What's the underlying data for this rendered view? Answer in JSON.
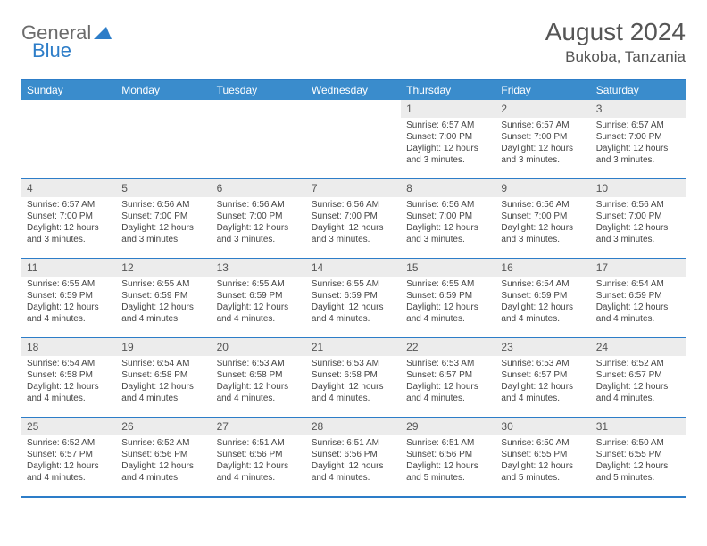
{
  "logo": {
    "text_general": "General",
    "text_blue": "Blue"
  },
  "title": {
    "month": "August 2024",
    "location": "Bukoba, Tanzania"
  },
  "colors": {
    "header_bg": "#3a8ccc",
    "border": "#2d7dc8",
    "daynum_bg": "#ececec",
    "text": "#444444"
  },
  "day_names": [
    "Sunday",
    "Monday",
    "Tuesday",
    "Wednesday",
    "Thursday",
    "Friday",
    "Saturday"
  ],
  "weeks": [
    [
      {
        "day": "",
        "sunrise": "",
        "sunset": "",
        "daylight": ""
      },
      {
        "day": "",
        "sunrise": "",
        "sunset": "",
        "daylight": ""
      },
      {
        "day": "",
        "sunrise": "",
        "sunset": "",
        "daylight": ""
      },
      {
        "day": "",
        "sunrise": "",
        "sunset": "",
        "daylight": ""
      },
      {
        "day": "1",
        "sunrise": "Sunrise: 6:57 AM",
        "sunset": "Sunset: 7:00 PM",
        "daylight": "Daylight: 12 hours and 3 minutes."
      },
      {
        "day": "2",
        "sunrise": "Sunrise: 6:57 AM",
        "sunset": "Sunset: 7:00 PM",
        "daylight": "Daylight: 12 hours and 3 minutes."
      },
      {
        "day": "3",
        "sunrise": "Sunrise: 6:57 AM",
        "sunset": "Sunset: 7:00 PM",
        "daylight": "Daylight: 12 hours and 3 minutes."
      }
    ],
    [
      {
        "day": "4",
        "sunrise": "Sunrise: 6:57 AM",
        "sunset": "Sunset: 7:00 PM",
        "daylight": "Daylight: 12 hours and 3 minutes."
      },
      {
        "day": "5",
        "sunrise": "Sunrise: 6:56 AM",
        "sunset": "Sunset: 7:00 PM",
        "daylight": "Daylight: 12 hours and 3 minutes."
      },
      {
        "day": "6",
        "sunrise": "Sunrise: 6:56 AM",
        "sunset": "Sunset: 7:00 PM",
        "daylight": "Daylight: 12 hours and 3 minutes."
      },
      {
        "day": "7",
        "sunrise": "Sunrise: 6:56 AM",
        "sunset": "Sunset: 7:00 PM",
        "daylight": "Daylight: 12 hours and 3 minutes."
      },
      {
        "day": "8",
        "sunrise": "Sunrise: 6:56 AM",
        "sunset": "Sunset: 7:00 PM",
        "daylight": "Daylight: 12 hours and 3 minutes."
      },
      {
        "day": "9",
        "sunrise": "Sunrise: 6:56 AM",
        "sunset": "Sunset: 7:00 PM",
        "daylight": "Daylight: 12 hours and 3 minutes."
      },
      {
        "day": "10",
        "sunrise": "Sunrise: 6:56 AM",
        "sunset": "Sunset: 7:00 PM",
        "daylight": "Daylight: 12 hours and 3 minutes."
      }
    ],
    [
      {
        "day": "11",
        "sunrise": "Sunrise: 6:55 AM",
        "sunset": "Sunset: 6:59 PM",
        "daylight": "Daylight: 12 hours and 4 minutes."
      },
      {
        "day": "12",
        "sunrise": "Sunrise: 6:55 AM",
        "sunset": "Sunset: 6:59 PM",
        "daylight": "Daylight: 12 hours and 4 minutes."
      },
      {
        "day": "13",
        "sunrise": "Sunrise: 6:55 AM",
        "sunset": "Sunset: 6:59 PM",
        "daylight": "Daylight: 12 hours and 4 minutes."
      },
      {
        "day": "14",
        "sunrise": "Sunrise: 6:55 AM",
        "sunset": "Sunset: 6:59 PM",
        "daylight": "Daylight: 12 hours and 4 minutes."
      },
      {
        "day": "15",
        "sunrise": "Sunrise: 6:55 AM",
        "sunset": "Sunset: 6:59 PM",
        "daylight": "Daylight: 12 hours and 4 minutes."
      },
      {
        "day": "16",
        "sunrise": "Sunrise: 6:54 AM",
        "sunset": "Sunset: 6:59 PM",
        "daylight": "Daylight: 12 hours and 4 minutes."
      },
      {
        "day": "17",
        "sunrise": "Sunrise: 6:54 AM",
        "sunset": "Sunset: 6:59 PM",
        "daylight": "Daylight: 12 hours and 4 minutes."
      }
    ],
    [
      {
        "day": "18",
        "sunrise": "Sunrise: 6:54 AM",
        "sunset": "Sunset: 6:58 PM",
        "daylight": "Daylight: 12 hours and 4 minutes."
      },
      {
        "day": "19",
        "sunrise": "Sunrise: 6:54 AM",
        "sunset": "Sunset: 6:58 PM",
        "daylight": "Daylight: 12 hours and 4 minutes."
      },
      {
        "day": "20",
        "sunrise": "Sunrise: 6:53 AM",
        "sunset": "Sunset: 6:58 PM",
        "daylight": "Daylight: 12 hours and 4 minutes."
      },
      {
        "day": "21",
        "sunrise": "Sunrise: 6:53 AM",
        "sunset": "Sunset: 6:58 PM",
        "daylight": "Daylight: 12 hours and 4 minutes."
      },
      {
        "day": "22",
        "sunrise": "Sunrise: 6:53 AM",
        "sunset": "Sunset: 6:57 PM",
        "daylight": "Daylight: 12 hours and 4 minutes."
      },
      {
        "day": "23",
        "sunrise": "Sunrise: 6:53 AM",
        "sunset": "Sunset: 6:57 PM",
        "daylight": "Daylight: 12 hours and 4 minutes."
      },
      {
        "day": "24",
        "sunrise": "Sunrise: 6:52 AM",
        "sunset": "Sunset: 6:57 PM",
        "daylight": "Daylight: 12 hours and 4 minutes."
      }
    ],
    [
      {
        "day": "25",
        "sunrise": "Sunrise: 6:52 AM",
        "sunset": "Sunset: 6:57 PM",
        "daylight": "Daylight: 12 hours and 4 minutes."
      },
      {
        "day": "26",
        "sunrise": "Sunrise: 6:52 AM",
        "sunset": "Sunset: 6:56 PM",
        "daylight": "Daylight: 12 hours and 4 minutes."
      },
      {
        "day": "27",
        "sunrise": "Sunrise: 6:51 AM",
        "sunset": "Sunset: 6:56 PM",
        "daylight": "Daylight: 12 hours and 4 minutes."
      },
      {
        "day": "28",
        "sunrise": "Sunrise: 6:51 AM",
        "sunset": "Sunset: 6:56 PM",
        "daylight": "Daylight: 12 hours and 4 minutes."
      },
      {
        "day": "29",
        "sunrise": "Sunrise: 6:51 AM",
        "sunset": "Sunset: 6:56 PM",
        "daylight": "Daylight: 12 hours and 5 minutes."
      },
      {
        "day": "30",
        "sunrise": "Sunrise: 6:50 AM",
        "sunset": "Sunset: 6:55 PM",
        "daylight": "Daylight: 12 hours and 5 minutes."
      },
      {
        "day": "31",
        "sunrise": "Sunrise: 6:50 AM",
        "sunset": "Sunset: 6:55 PM",
        "daylight": "Daylight: 12 hours and 5 minutes."
      }
    ]
  ]
}
